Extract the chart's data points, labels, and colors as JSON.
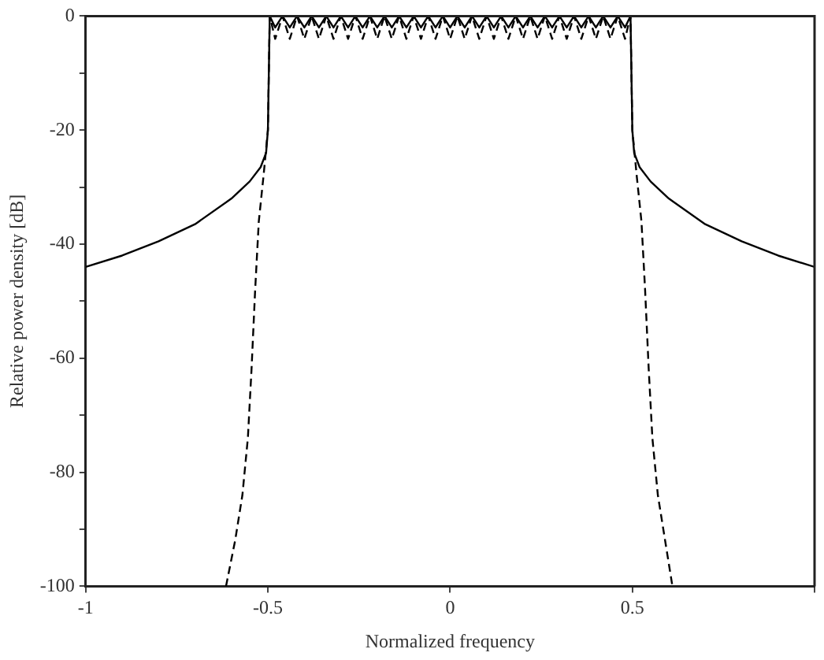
{
  "chart_data": {
    "type": "line",
    "xlabel": "Normalized frequency",
    "ylabel": "Relative power density [dB]",
    "xlim": [
      -1,
      1
    ],
    "ylim": [
      -100,
      0
    ],
    "xticks": [
      -1,
      -0.5,
      0,
      0.5,
      {
        "value": 1,
        "label": null
      }
    ],
    "yticks": [
      -100,
      {
        "value": -90,
        "label": null
      },
      -80,
      {
        "value": -70,
        "label": null
      },
      -60,
      {
        "value": -50,
        "label": null
      },
      -40,
      {
        "value": -30,
        "label": null
      },
      -20,
      {
        "value": -10,
        "label": null
      },
      0
    ],
    "marker": "none",
    "series": [
      {
        "color": "#000000",
        "line_style": "solid",
        "x": [
          -1,
          -0.9,
          -0.8,
          -0.7,
          -0.6,
          -0.55,
          -0.52,
          -0.505,
          -0.5,
          -0.495,
          -0.48,
          -0.46,
          -0.44,
          -0.42,
          -0.4,
          -0.38,
          -0.36,
          -0.34,
          -0.32,
          -0.3,
          -0.28,
          -0.26,
          -0.24,
          -0.22,
          -0.2,
          -0.18,
          -0.16,
          -0.14,
          -0.12,
          -0.1,
          -0.08,
          -0.06,
          -0.04,
          -0.02,
          0,
          0.02,
          0.04,
          0.06,
          0.08,
          0.1,
          0.12,
          0.14,
          0.16,
          0.18,
          0.2,
          0.22,
          0.24,
          0.26,
          0.28,
          0.3,
          0.32,
          0.34,
          0.36,
          0.38,
          0.4,
          0.42,
          0.44,
          0.46,
          0.48,
          0.495,
          0.5,
          0.505,
          0.52,
          0.55,
          0.6,
          0.7,
          0.8,
          0.9,
          1
        ],
        "values": [
          -44,
          -42,
          -39.5,
          -36.5,
          -32,
          -29,
          -26.5,
          -24,
          -20,
          0,
          -2,
          0,
          -2,
          0,
          -2,
          0,
          -2,
          0,
          -2,
          0,
          -2,
          0,
          -2,
          0,
          -2,
          0,
          -2,
          0,
          -2,
          0,
          -2,
          0,
          -2,
          0,
          -2,
          0,
          -2,
          0,
          -2,
          0,
          -2,
          0,
          -2,
          0,
          -2,
          0,
          -2,
          0,
          -2,
          0,
          -2,
          0,
          -2,
          0,
          -2,
          0,
          -2,
          0,
          -2,
          0,
          -20,
          -24,
          -26.5,
          -29,
          -32,
          -36.5,
          -39.5,
          -42,
          -44
        ]
      },
      {
        "color": "#000000",
        "line_style": "dashed",
        "x": [
          -0.615,
          -0.59,
          -0.57,
          -0.555,
          -0.545,
          -0.535,
          -0.525,
          -0.512,
          -0.5,
          -0.495,
          -0.48,
          -0.46,
          -0.44,
          -0.42,
          -0.4,
          -0.38,
          -0.36,
          -0.34,
          -0.32,
          -0.3,
          -0.28,
          -0.26,
          -0.24,
          -0.22,
          -0.2,
          -0.18,
          -0.16,
          -0.14,
          -0.12,
          -0.1,
          -0.08,
          -0.06,
          -0.04,
          -0.02,
          0,
          0.02,
          0.04,
          0.06,
          0.08,
          0.1,
          0.12,
          0.14,
          0.16,
          0.18,
          0.2,
          0.22,
          0.24,
          0.26,
          0.28,
          0.3,
          0.32,
          0.34,
          0.36,
          0.38,
          0.4,
          0.42,
          0.44,
          0.46,
          0.48,
          0.495,
          0.5,
          0.512,
          0.525,
          0.535,
          0.545,
          0.555,
          0.57,
          0.59,
          0.61
        ],
        "values": [
          -100,
          -92,
          -84,
          -74,
          -62,
          -48,
          -36,
          -28,
          -20,
          0,
          -4,
          0,
          -4,
          0,
          -4,
          0,
          -4,
          0,
          -4,
          0,
          -4,
          0,
          -4,
          0,
          -4,
          0,
          -4,
          0,
          -4,
          0,
          -4,
          0,
          -4,
          0,
          -4,
          0,
          -4,
          0,
          -4,
          0,
          -4,
          0,
          -4,
          0,
          -4,
          0,
          -4,
          0,
          -4,
          0,
          -4,
          0,
          -4,
          0,
          -4,
          0,
          -4,
          0,
          -4,
          0,
          -20,
          -28,
          -36,
          -48,
          -62,
          -74,
          -84,
          -92,
          -100
        ]
      }
    ]
  }
}
